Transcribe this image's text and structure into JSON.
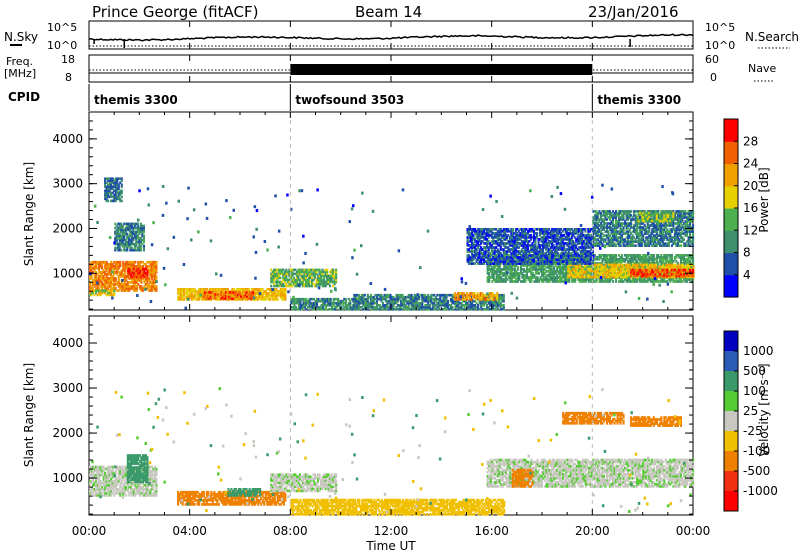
{
  "header": {
    "station": "Prince George (fitACF)",
    "beam": "Beam 14",
    "date": "23/Jan/2016"
  },
  "noise_panel": {
    "left_label": "N.Sky",
    "right_label": "N.Search",
    "left_ticks": [
      "10^5",
      "10^0"
    ],
    "right_ticks": [
      "10^5",
      "10^0"
    ]
  },
  "freq_panel": {
    "left_label_1": "Freq.",
    "left_label_2": "[MHz]",
    "left_ticks": [
      "18",
      "8"
    ],
    "right_label": "Nave",
    "right_ticks": [
      "60",
      "0"
    ]
  },
  "cpid": {
    "label": "CPID",
    "segments": [
      {
        "name": "themis 3300",
        "start_hour": 0,
        "end_hour": 8
      },
      {
        "name": "twofsound 3503",
        "start_hour": 8,
        "end_hour": 20
      },
      {
        "name": "themis 3300",
        "start_hour": 20,
        "end_hour": 24
      }
    ]
  },
  "power_panel": {
    "ylabel": "Slant Range [km]",
    "yticks": [
      "1000",
      "2000",
      "3000",
      "4000"
    ],
    "colorbar_label": "Power [dB]",
    "colorbar_ticks": [
      "4",
      "8",
      "12",
      "16",
      "20",
      "24",
      "28"
    ],
    "colors": [
      "#0000ff",
      "#1f4fa8",
      "#3d8f6e",
      "#4caf50",
      "#e8d000",
      "#f0a000",
      "#f06000",
      "#ff0000"
    ]
  },
  "velocity_panel": {
    "ylabel": "Slant Range [km]",
    "yticks": [
      "1000",
      "2000",
      "3000",
      "4000"
    ],
    "colorbar_label": "Velocity [m s⁻¹]",
    "colorbar_ticks": [
      "1000",
      "500",
      "100",
      "25",
      "-25",
      "-100",
      "-500",
      "-1000"
    ],
    "colors": [
      "#0000c0",
      "#2a5bb5",
      "#3a9a6a",
      "#55cc33",
      "#c8c8c0",
      "#f0c000",
      "#f08000",
      "#f03010",
      "#ff0000"
    ]
  },
  "xaxis": {
    "label": "Time UT",
    "ticks": [
      "00:00",
      "04:00",
      "08:00",
      "12:00",
      "16:00",
      "20:00",
      "00:00"
    ]
  },
  "chart_data": {
    "type": "heatmap",
    "x_range_hours": [
      0,
      24
    ],
    "y_range_km": [
      180,
      4600
    ],
    "range_gate_km": 45,
    "power_bands": [
      {
        "t0": 0.0,
        "t1": 2.7,
        "r0": 600,
        "r1": 1250,
        "power_db": 24
      },
      {
        "t0": 1.5,
        "t1": 2.3,
        "r0": 900,
        "r1": 1100,
        "power_db": 29
      },
      {
        "t0": 0.0,
        "t1": 1.0,
        "r0": 500,
        "r1": 600,
        "power_db": 18
      },
      {
        "t0": 1.0,
        "t1": 2.2,
        "r0": 1500,
        "r1": 2100,
        "power_db": 9
      },
      {
        "t0": 3.5,
        "t1": 7.8,
        "r0": 400,
        "r1": 650,
        "power_db": 20
      },
      {
        "t0": 4.5,
        "t1": 6.5,
        "r0": 420,
        "r1": 560,
        "power_db": 26
      },
      {
        "t0": 7.2,
        "t1": 9.8,
        "r0": 700,
        "r1": 1100,
        "power_db": 14
      },
      {
        "t0": 8.0,
        "t1": 10.5,
        "r0": 180,
        "r1": 420,
        "power_db": 10
      },
      {
        "t0": 10.5,
        "t1": 16.5,
        "r0": 180,
        "r1": 500,
        "power_db": 9
      },
      {
        "t0": 14.5,
        "t1": 16.2,
        "r0": 400,
        "r1": 560,
        "power_db": 22
      },
      {
        "t0": 15.8,
        "t1": 24.0,
        "r0": 800,
        "r1": 1400,
        "power_db": 12
      },
      {
        "t0": 19.0,
        "t1": 24.0,
        "r0": 900,
        "r1": 1200,
        "power_db": 19
      },
      {
        "t0": 21.5,
        "t1": 24.0,
        "r0": 920,
        "r1": 1080,
        "power_db": 27
      },
      {
        "t0": 15.0,
        "t1": 20.0,
        "r0": 1200,
        "r1": 2000,
        "power_db": 6
      },
      {
        "t0": 20.0,
        "t1": 24.0,
        "r0": 1600,
        "r1": 2400,
        "power_db": 9
      },
      {
        "t0": 21.8,
        "t1": 23.2,
        "r0": 2150,
        "r1": 2350,
        "power_db": 15
      },
      {
        "t0": 0.6,
        "t1": 1.3,
        "r0": 2600,
        "r1": 3100,
        "power_db": 8
      }
    ],
    "velocity_bands": [
      {
        "t0": 0.0,
        "t1": 2.7,
        "r0": 600,
        "r1": 1250,
        "velocity_ms": 0
      },
      {
        "t0": 1.5,
        "t1": 2.3,
        "r0": 900,
        "r1": 1500,
        "velocity_ms": 60
      },
      {
        "t0": 3.5,
        "t1": 7.8,
        "r0": 400,
        "r1": 700,
        "velocity_ms": -200
      },
      {
        "t0": 5.5,
        "t1": 6.8,
        "r0": 600,
        "r1": 780,
        "velocity_ms": 70
      },
      {
        "t0": 7.2,
        "t1": 9.8,
        "r0": 700,
        "r1": 1100,
        "velocity_ms": 0
      },
      {
        "t0": 8.0,
        "t1": 16.5,
        "r0": 180,
        "r1": 500,
        "velocity_ms": -80
      },
      {
        "t0": 15.8,
        "t1": 24.0,
        "r0": 800,
        "r1": 1400,
        "velocity_ms": 0
      },
      {
        "t0": 18.8,
        "t1": 21.2,
        "r0": 2200,
        "r1": 2450,
        "velocity_ms": -300
      },
      {
        "t0": 21.5,
        "t1": 23.5,
        "r0": 2150,
        "r1": 2350,
        "velocity_ms": -300
      },
      {
        "t0": 16.8,
        "t1": 17.6,
        "r0": 800,
        "r1": 1200,
        "velocity_ms": -150
      }
    ]
  }
}
